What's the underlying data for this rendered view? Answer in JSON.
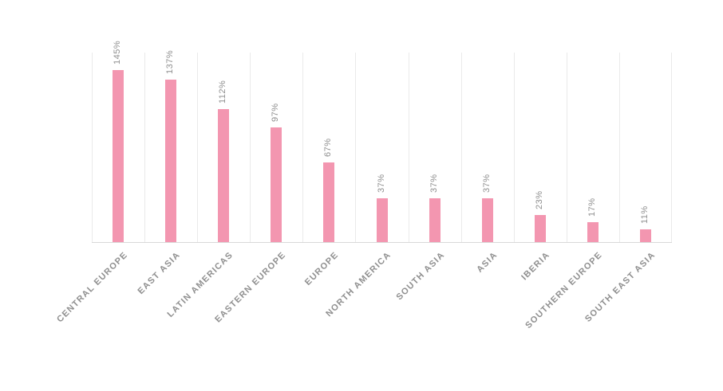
{
  "chart_data": {
    "type": "bar",
    "title": "",
    "xlabel": "",
    "ylabel": "",
    "categories": [
      "CENTRAL EUROPE",
      "EAST ASIA",
      "LATIN AMERICAS",
      "EASTERN EUROPE",
      "EUROPE",
      "NORTH AMERICA",
      "SOUTH ASIA",
      "ASIA",
      "IBERIA",
      "SOUTHERN EUROPE",
      "SOUTH EAST ASIA"
    ],
    "values": [
      145,
      137,
      112,
      97,
      67,
      37,
      37,
      37,
      23,
      17,
      11
    ],
    "value_labels": [
      "145%",
      "137%",
      "112%",
      "97%",
      "67%",
      "37%",
      "37%",
      "37%",
      "23%",
      "17%",
      "11%"
    ],
    "ylim": [
      0,
      160
    ],
    "grid": "vertical-category-separators",
    "legend_position": "none",
    "colors": {
      "bar": "#f396b0",
      "value_label": "#8f8f8f",
      "category_label": "#8f8f8f",
      "gridline": "#eaeaea",
      "axis_line": "#d9d9d9",
      "background": "#ffffff"
    }
  }
}
